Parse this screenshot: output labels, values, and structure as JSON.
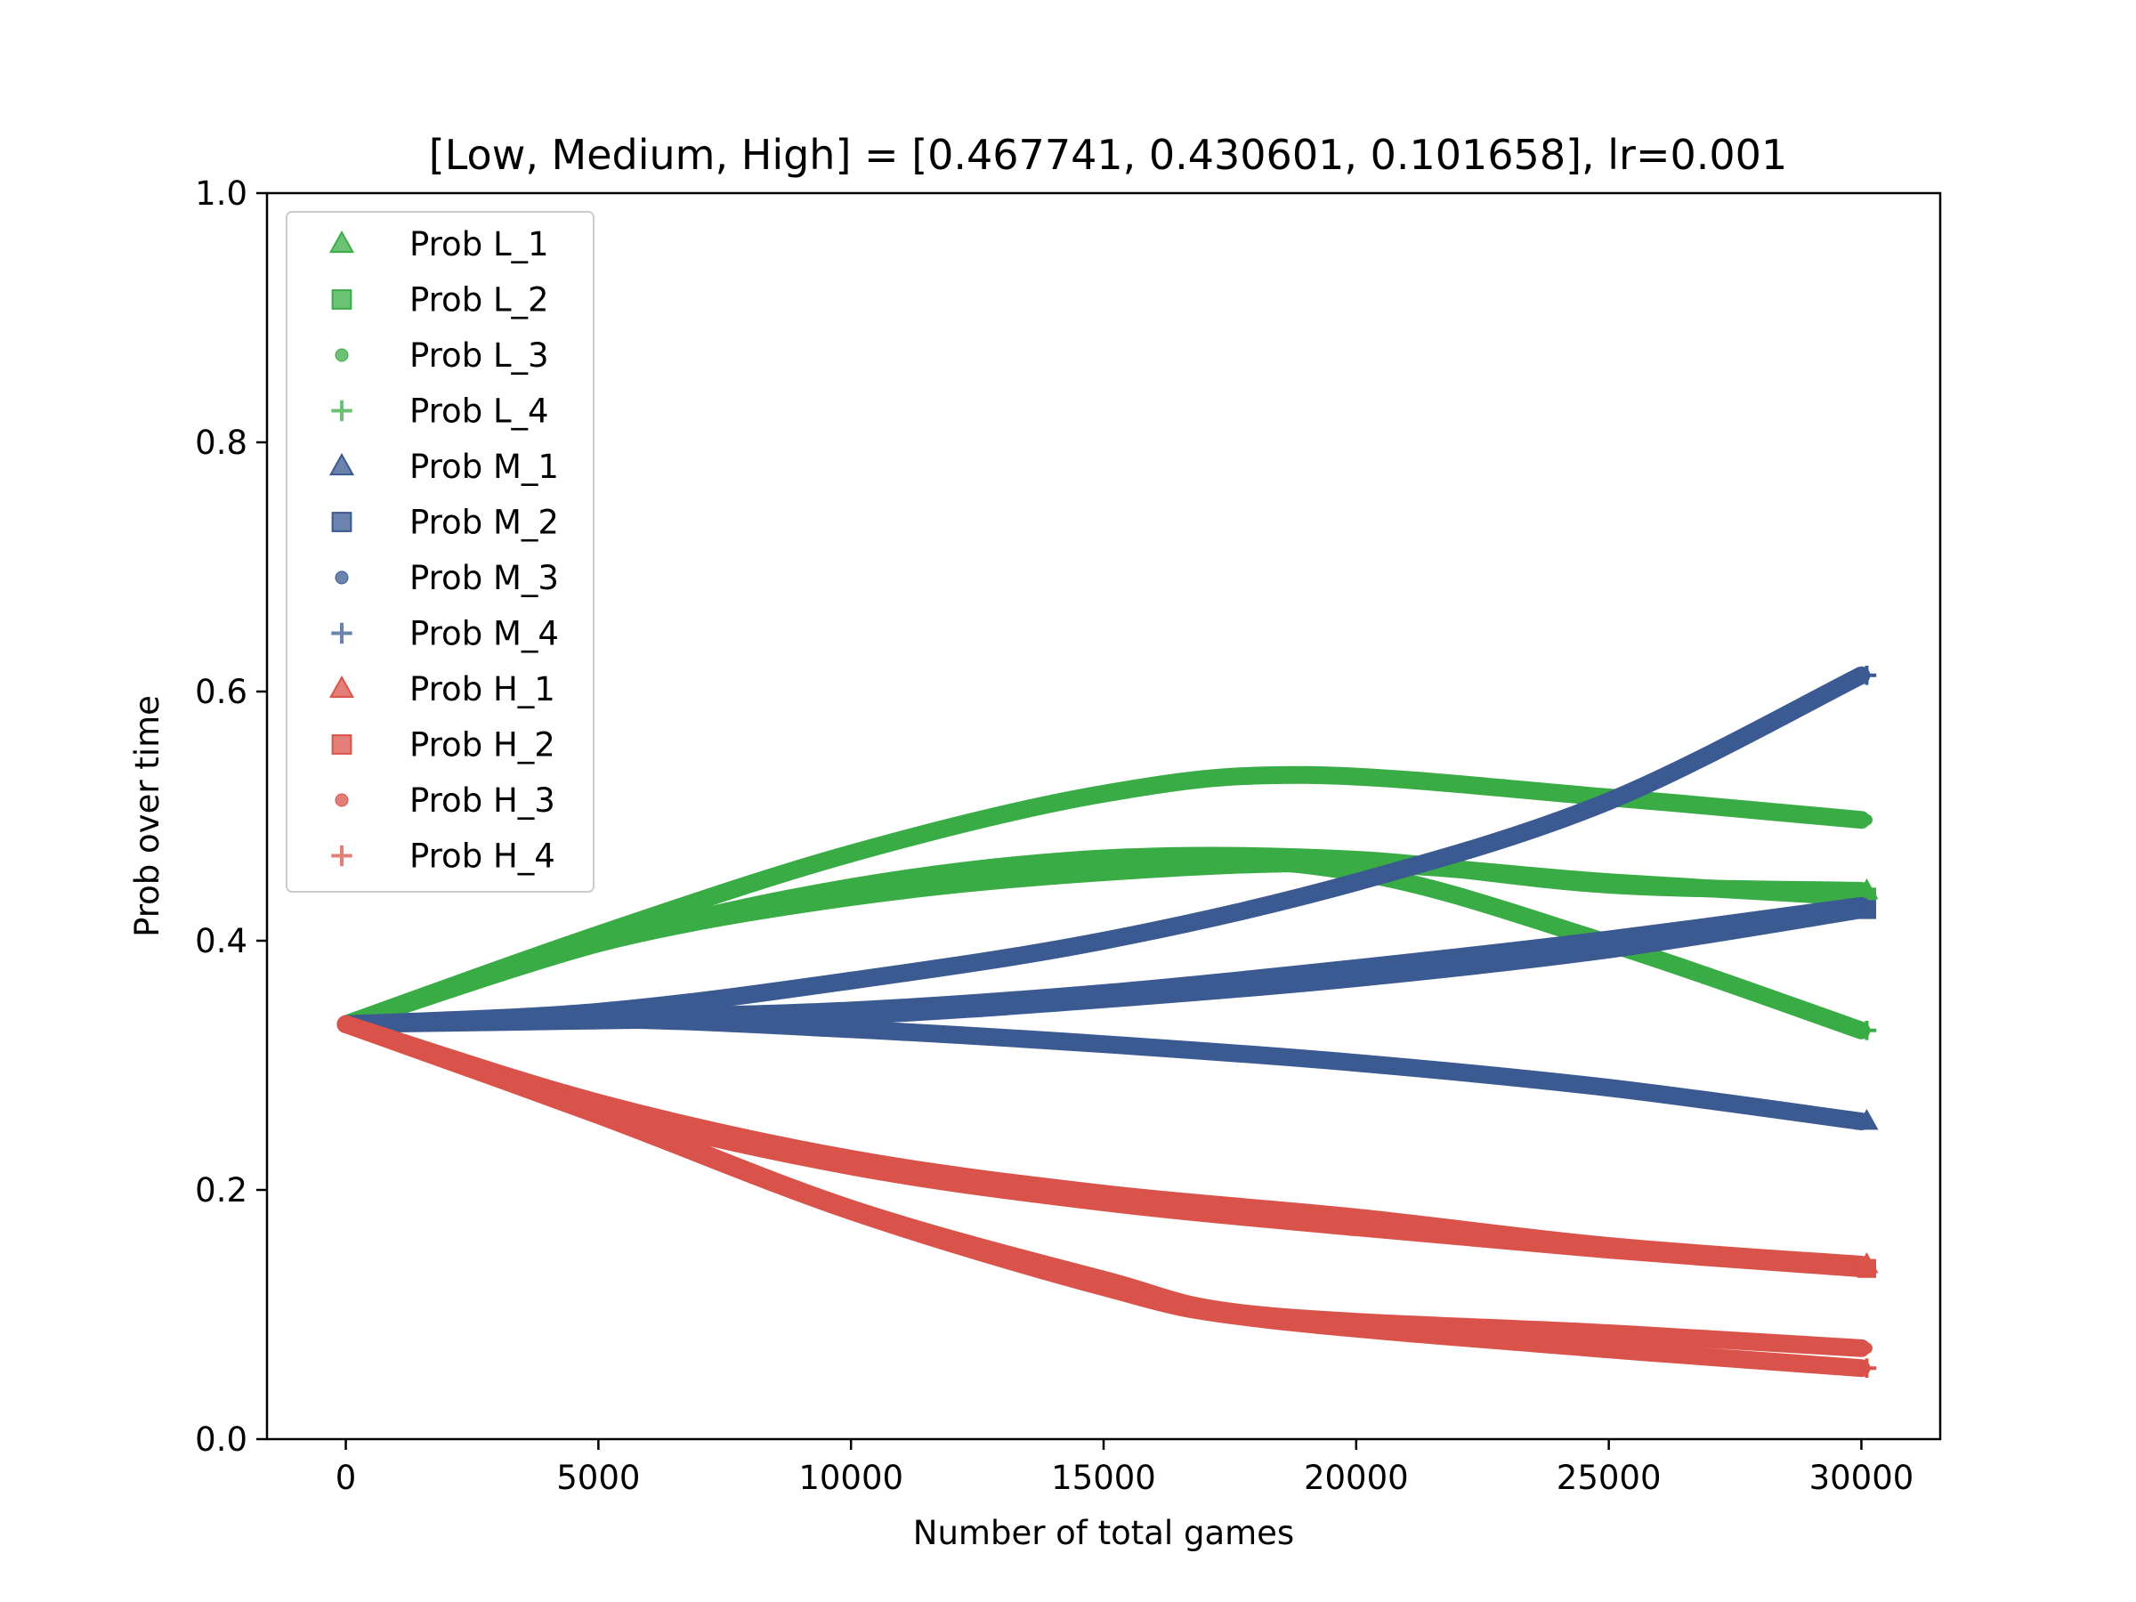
{
  "chart_data": {
    "type": "line",
    "title": "[Low, Medium, High] = [0.467741, 0.430601, 0.101658], lr=0.001",
    "xlabel": "Number of total games",
    "ylabel": "Prob over time",
    "xlim": [
      -1560,
      31560
    ],
    "ylim": [
      0.0,
      1.0
    ],
    "xticks": [
      0,
      5000,
      10000,
      15000,
      20000,
      25000,
      30000
    ],
    "xtick_labels": [
      "0",
      "5000",
      "10000",
      "15000",
      "20000",
      "25000",
      "30000"
    ],
    "yticks": [
      0.0,
      0.2,
      0.4,
      0.6,
      0.8,
      1.0
    ],
    "ytick_labels": [
      "0.0",
      "0.2",
      "0.4",
      "0.6",
      "0.8",
      "1.0"
    ],
    "grid": false,
    "legend_position": "upper-left",
    "colors": {
      "L": "#3aac46",
      "M": "#3a5a91",
      "H": "#d9534b"
    },
    "series": [
      {
        "name": "Prob L_1",
        "group": "L",
        "marker": "triangle",
        "x": [
          0,
          5000,
          10000,
          15000,
          20000,
          25000,
          30000
        ],
        "y": [
          0.333,
          0.398,
          0.443,
          0.466,
          0.465,
          0.445,
          0.44
        ]
      },
      {
        "name": "Prob L_2",
        "group": "L",
        "marker": "square",
        "x": [
          0,
          5000,
          10000,
          15000,
          20000,
          25000,
          30000
        ],
        "y": [
          0.333,
          0.398,
          0.435,
          0.455,
          0.462,
          0.447,
          0.435
        ]
      },
      {
        "name": "Prob L_3",
        "group": "L",
        "marker": "circle",
        "x": [
          0,
          5000,
          10000,
          15000,
          19000,
          25000,
          30000
        ],
        "y": [
          0.333,
          0.405,
          0.47,
          0.518,
          0.533,
          0.515,
          0.497
        ]
      },
      {
        "name": "Prob L_4",
        "group": "L",
        "marker": "plus",
        "x": [
          0,
          5000,
          10000,
          15000,
          20000,
          25000,
          30000
        ],
        "y": [
          0.333,
          0.4,
          0.438,
          0.466,
          0.455,
          0.398,
          0.328
        ]
      },
      {
        "name": "Prob M_1",
        "group": "M",
        "marker": "triangle",
        "x": [
          0,
          5000,
          10000,
          15000,
          20000,
          25000,
          30000
        ],
        "y": [
          0.333,
          0.337,
          0.329,
          0.317,
          0.302,
          0.282,
          0.255
        ]
      },
      {
        "name": "Prob M_2",
        "group": "M",
        "marker": "square",
        "x": [
          0,
          5000,
          10000,
          15000,
          20000,
          25000,
          30000
        ],
        "y": [
          0.333,
          0.336,
          0.34,
          0.353,
          0.37,
          0.393,
          0.425
        ]
      },
      {
        "name": "Prob M_3",
        "group": "M",
        "marker": "circle",
        "x": [
          0,
          5000,
          10000,
          15000,
          20000,
          25000,
          30000
        ],
        "y": [
          0.333,
          0.338,
          0.344,
          0.358,
          0.378,
          0.401,
          0.428
        ]
      },
      {
        "name": "Prob M_4",
        "group": "M",
        "marker": "plus",
        "x": [
          0,
          5000,
          10000,
          15000,
          20000,
          25000,
          30000
        ],
        "y": [
          0.333,
          0.343,
          0.368,
          0.4,
          0.447,
          0.512,
          0.613
        ]
      },
      {
        "name": "Prob H_1",
        "group": "H",
        "marker": "triangle",
        "x": [
          0,
          5000,
          10000,
          15000,
          20000,
          25000,
          30000
        ],
        "y": [
          0.333,
          0.27,
          0.225,
          0.197,
          0.178,
          0.155,
          0.14
        ]
      },
      {
        "name": "Prob H_2",
        "group": "H",
        "marker": "square",
        "x": [
          0,
          5000,
          10000,
          15000,
          20000,
          25000,
          30000
        ],
        "y": [
          0.333,
          0.265,
          0.219,
          0.19,
          0.17,
          0.152,
          0.137
        ]
      },
      {
        "name": "Prob H_3",
        "group": "H",
        "marker": "circle",
        "x": [
          0,
          5000,
          10000,
          15000,
          18000,
          25000,
          30000
        ],
        "y": [
          0.333,
          0.262,
          0.185,
          0.128,
          0.1,
          0.085,
          0.073
        ]
      },
      {
        "name": "Prob H_4",
        "group": "H",
        "marker": "plus",
        "x": [
          0,
          5000,
          10000,
          15000,
          18000,
          25000,
          30000
        ],
        "y": [
          0.333,
          0.26,
          0.183,
          0.122,
          0.097,
          0.072,
          0.057
        ]
      }
    ]
  }
}
